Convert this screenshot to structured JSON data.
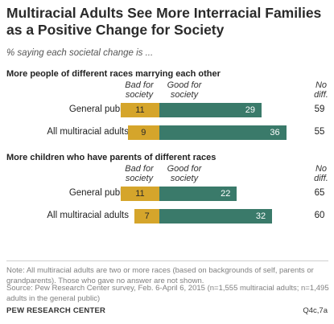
{
  "title": "Multiracial Adults See More Interracial Families as a Positive Change for Society",
  "subtitle": "% saying each societal change is ...",
  "chart_data": [
    {
      "type": "bar",
      "title": "More people of different races marrying each other",
      "column_headers": {
        "bad": "Bad for society",
        "good": "Good for society",
        "nodiff": "No diff."
      },
      "categories": [
        "General public",
        "All multiracial adults"
      ],
      "series": [
        {
          "name": "Bad for society",
          "values": [
            11,
            9
          ]
        },
        {
          "name": "Good for society",
          "values": [
            29,
            36
          ]
        },
        {
          "name": "No diff.",
          "values": [
            59,
            55
          ]
        }
      ]
    },
    {
      "type": "bar",
      "title": "More children who have parents of different races",
      "column_headers": {
        "bad": "Bad for society",
        "good": "Good for society",
        "nodiff": "No diff."
      },
      "categories": [
        "General public",
        "All multiracial adults"
      ],
      "series": [
        {
          "name": "Bad for society",
          "values": [
            11,
            7
          ]
        },
        {
          "name": "Good for society",
          "values": [
            22,
            32
          ]
        },
        {
          "name": "No diff.",
          "values": [
            65,
            60
          ]
        }
      ]
    }
  ],
  "note": "Note: All multiracial adults are two or more races (based on backgrounds of self, parents or grandparents). Those who gave no answer are not shown.",
  "source": "Source: Pew Research Center survey, Feb. 6-April 6, 2015 (n=1,555 multiracial adults; n=1,495 adults in the general public)",
  "footer": {
    "org": "PEW RESEARCH CENTER",
    "ref": "Q4c,7a"
  },
  "colors": {
    "bad": "#d5a52b",
    "good": "#3a7a6a"
  }
}
